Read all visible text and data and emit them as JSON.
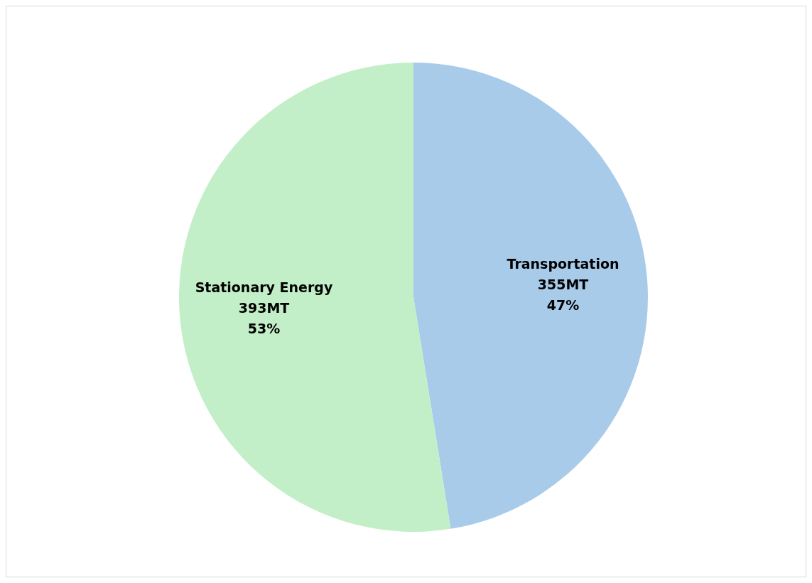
{
  "chart_data": {
    "type": "pie",
    "categories": [
      "Transportation",
      "Stationary Energy"
    ],
    "values": [
      355,
      393
    ],
    "colors": [
      "#a9cbea",
      "#c2efc7"
    ],
    "value_labels": [
      "355MT\n47%",
      "393MT\n53%"
    ]
  }
}
